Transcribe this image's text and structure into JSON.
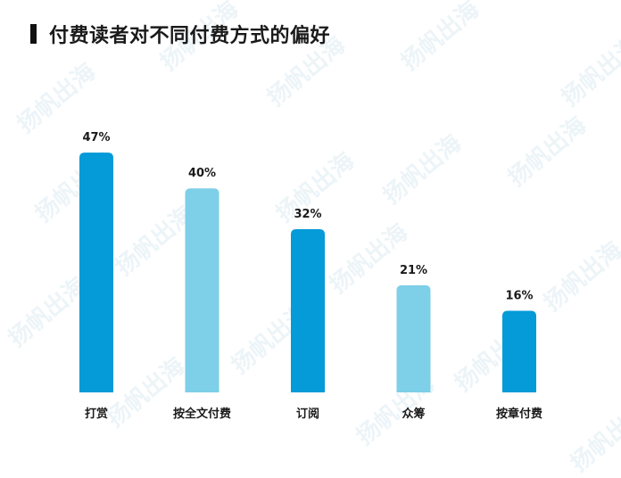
{
  "watermark": "扬帆出海",
  "chart_data": {
    "type": "bar",
    "title": "付费读者对不同付费方式的偏好",
    "categories": [
      "打赏",
      "按全文付费",
      "订阅",
      "众筹",
      "按章付费"
    ],
    "values": [
      47,
      40,
      32,
      21,
      16
    ],
    "value_labels": [
      "47%",
      "40%",
      "32%",
      "21%",
      "16%"
    ],
    "unit": "%",
    "colors": [
      "#059ad8",
      "#7ecfe8",
      "#059ad8",
      "#7ecfe8",
      "#059ad8"
    ],
    "ylim": [
      0,
      50
    ],
    "grid": false,
    "legend": "none"
  }
}
